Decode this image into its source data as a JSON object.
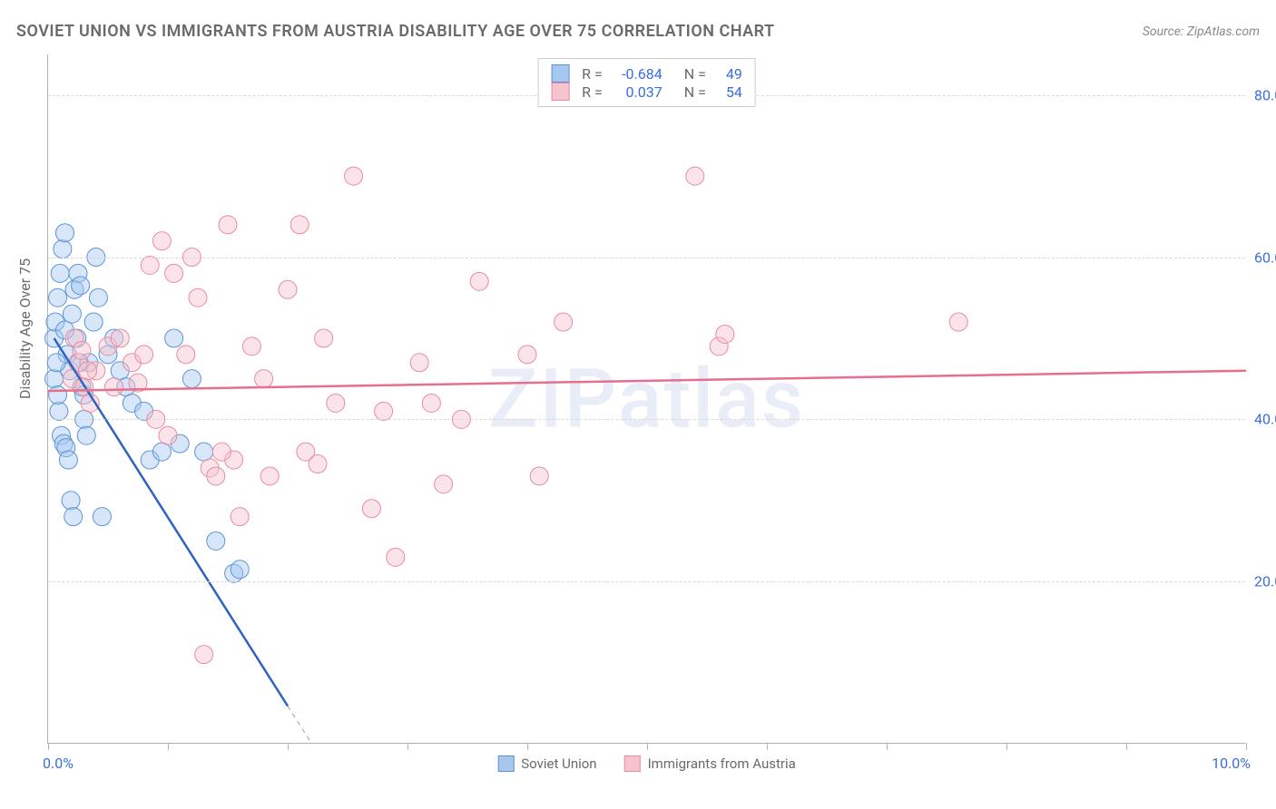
{
  "title": "SOVIET UNION VS IMMIGRANTS FROM AUSTRIA DISABILITY AGE OVER 75 CORRELATION CHART",
  "source_prefix": "Source: ",
  "source_name": "ZipAtlas.com",
  "watermark": "ZIPatlas",
  "yaxis_label": "Disability Age Over 75",
  "chart": {
    "type": "scatter",
    "xlim": [
      0,
      10
    ],
    "ylim": [
      0,
      85
    ],
    "ytick_values": [
      20,
      40,
      60,
      80
    ],
    "ytick_labels": [
      "20.0%",
      "40.0%",
      "60.0%",
      "80.0%"
    ],
    "xtick_values": [
      0,
      1,
      2,
      3,
      4,
      5,
      6,
      7,
      8,
      9,
      10
    ],
    "xtick_left_label": "0.0%",
    "xtick_right_label": "10.0%",
    "grid_color": "#d8d8d8",
    "axis_color": "#b0b0b0",
    "background_color": "#ffffff",
    "marker_radius": 10,
    "marker_opacity": 0.45,
    "line_width": 2.5,
    "series": [
      {
        "id": "soviet",
        "label": "Soviet Union",
        "fill_color": "#a7c7ef",
        "stroke_color": "#5d94d6",
        "line_color": "#2f63c2",
        "R": "-0.684",
        "N": "49",
        "regression": {
          "x1": 0.05,
          "y1": 50,
          "x2": 2.2,
          "y2": 0,
          "dash_from_x": 2.0
        },
        "points": [
          [
            0.05,
            50
          ],
          [
            0.06,
            52
          ],
          [
            0.08,
            55
          ],
          [
            0.1,
            58
          ],
          [
            0.12,
            61
          ],
          [
            0.14,
            63
          ],
          [
            0.16,
            48
          ],
          [
            0.18,
            46
          ],
          [
            0.2,
            53
          ],
          [
            0.22,
            56
          ],
          [
            0.24,
            50
          ],
          [
            0.26,
            47
          ],
          [
            0.28,
            44
          ],
          [
            0.3,
            43
          ],
          [
            0.05,
            45
          ],
          [
            0.07,
            47
          ],
          [
            0.09,
            41
          ],
          [
            0.11,
            38
          ],
          [
            0.13,
            37
          ],
          [
            0.15,
            36.5
          ],
          [
            0.17,
            35
          ],
          [
            0.19,
            30
          ],
          [
            0.21,
            28
          ],
          [
            0.3,
            40
          ],
          [
            0.34,
            47
          ],
          [
            0.38,
            52
          ],
          [
            0.42,
            55
          ],
          [
            0.5,
            48
          ],
          [
            0.55,
            50
          ],
          [
            0.6,
            46
          ],
          [
            0.65,
            44
          ],
          [
            0.7,
            42
          ],
          [
            0.8,
            41
          ],
          [
            0.85,
            35
          ],
          [
            0.95,
            36
          ],
          [
            1.05,
            50
          ],
          [
            1.1,
            37
          ],
          [
            1.2,
            45
          ],
          [
            1.3,
            36
          ],
          [
            1.4,
            25
          ],
          [
            1.55,
            21
          ],
          [
            1.6,
            21.5
          ],
          [
            0.4,
            60
          ],
          [
            0.32,
            38
          ],
          [
            0.25,
            58
          ],
          [
            0.27,
            56.5
          ],
          [
            0.08,
            43
          ],
          [
            0.14,
            51
          ],
          [
            0.45,
            28
          ]
        ]
      },
      {
        "id": "austria",
        "label": "Immigrants from Austria",
        "fill_color": "#f6c3ce",
        "stroke_color": "#e98ba0",
        "line_color": "#e56f8c",
        "R": "0.037",
        "N": "54",
        "regression": {
          "x1": 0,
          "y1": 43.5,
          "x2": 10,
          "y2": 46
        },
        "points": [
          [
            0.2,
            45
          ],
          [
            0.25,
            47
          ],
          [
            0.3,
            44
          ],
          [
            0.35,
            42
          ],
          [
            0.4,
            46
          ],
          [
            0.5,
            49
          ],
          [
            0.6,
            50
          ],
          [
            0.7,
            47
          ],
          [
            0.8,
            48
          ],
          [
            0.9,
            40
          ],
          [
            0.95,
            62
          ],
          [
            1.0,
            38
          ],
          [
            1.05,
            58
          ],
          [
            1.15,
            48
          ],
          [
            1.2,
            60
          ],
          [
            1.25,
            55
          ],
          [
            1.35,
            34
          ],
          [
            1.4,
            33
          ],
          [
            1.5,
            64
          ],
          [
            1.55,
            35
          ],
          [
            1.6,
            28
          ],
          [
            1.7,
            49
          ],
          [
            1.8,
            45
          ],
          [
            1.85,
            33
          ],
          [
            2.0,
            56
          ],
          [
            2.1,
            64
          ],
          [
            2.15,
            36
          ],
          [
            2.25,
            34.5
          ],
          [
            2.3,
            50
          ],
          [
            2.4,
            42
          ],
          [
            2.55,
            70
          ],
          [
            2.7,
            29
          ],
          [
            2.8,
            41
          ],
          [
            2.9,
            23
          ],
          [
            3.1,
            47
          ],
          [
            3.2,
            42
          ],
          [
            3.3,
            32
          ],
          [
            3.45,
            40
          ],
          [
            3.6,
            57
          ],
          [
            4.0,
            48
          ],
          [
            4.1,
            33
          ],
          [
            4.3,
            52
          ],
          [
            5.4,
            70
          ],
          [
            5.6,
            49
          ],
          [
            5.65,
            50.5
          ],
          [
            7.6,
            52
          ],
          [
            0.55,
            44
          ],
          [
            0.75,
            44.5
          ],
          [
            0.85,
            59
          ],
          [
            1.3,
            11
          ],
          [
            1.45,
            36
          ],
          [
            0.22,
            50
          ],
          [
            0.28,
            48.5
          ],
          [
            0.33,
            46
          ]
        ]
      }
    ]
  }
}
